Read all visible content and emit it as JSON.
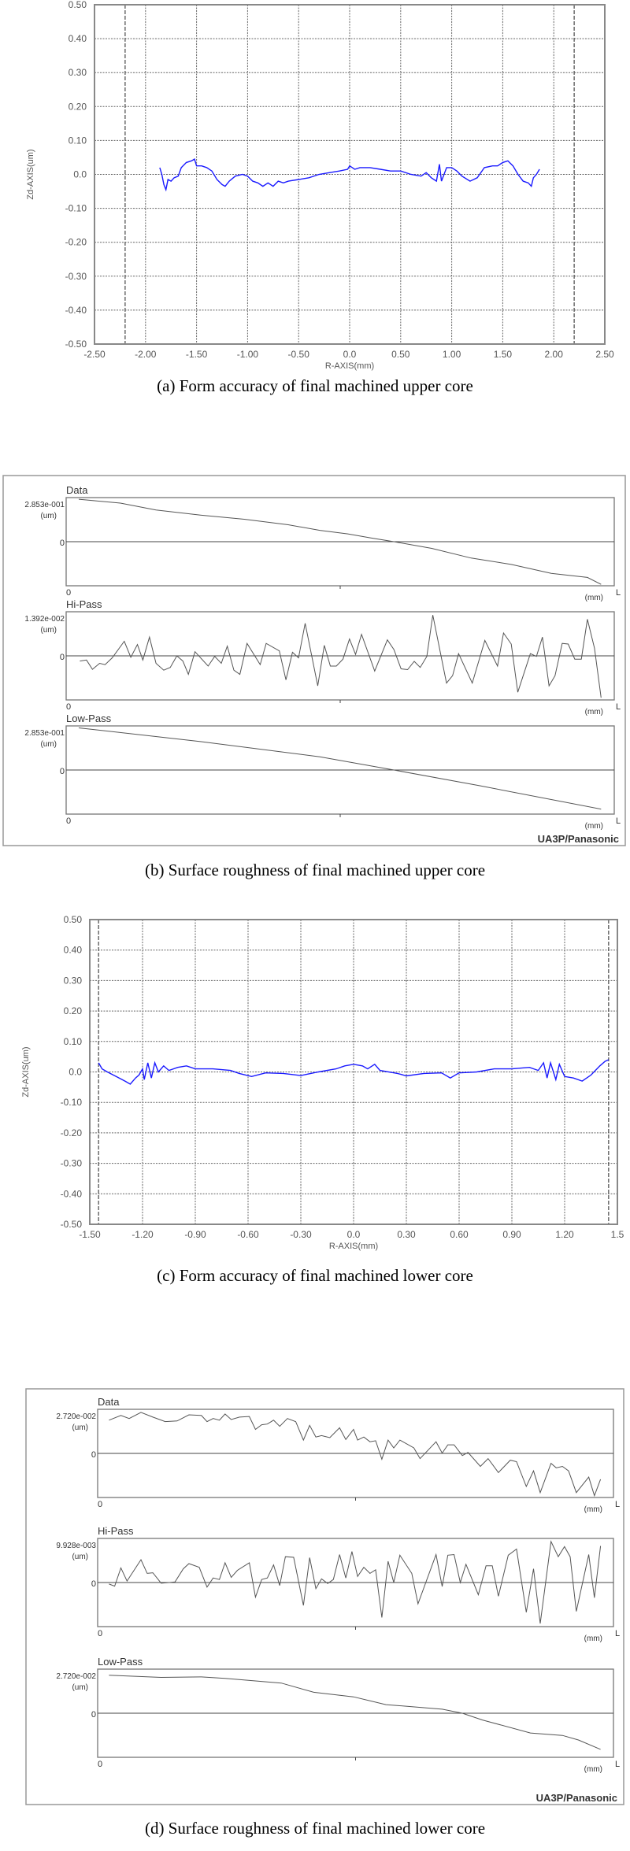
{
  "chart_data": [
    {
      "type": "line",
      "caption": "(a) Form accuracy of final machined upper core",
      "xlabel": "R-AXIS(mm)",
      "ylabel": "Zd-AXIS(um)",
      "xlim": [
        -2.5,
        2.5
      ],
      "ylim": [
        -0.5,
        0.5
      ],
      "xticks": [
        "-2.50",
        "-2.00",
        "-1.50",
        "-1.00",
        "-0.50",
        "0.0",
        "0.50",
        "1.00",
        "1.50",
        "2.00",
        "2.50"
      ],
      "yticks": [
        "0.50",
        "0.40",
        "0.30",
        "0.20",
        "0.10",
        "0.0",
        "-0.10",
        "-0.20",
        "-0.30",
        "-0.40",
        "-0.50"
      ],
      "grid": true,
      "line_color": "#1a1aff",
      "series": [
        {
          "x": [
            -1.86,
            -1.84,
            -1.82,
            -1.8,
            -1.78,
            -1.75,
            -1.72,
            -1.68,
            -1.65,
            -1.6,
            -1.55,
            -1.52,
            -1.5,
            -1.45,
            -1.4,
            -1.35,
            -1.3,
            -1.25,
            -1.22,
            -1.18,
            -1.12,
            -1.05,
            -1.0,
            -0.95,
            -0.9,
            -0.85,
            -0.8,
            -0.75,
            -0.7,
            -0.65,
            -0.6,
            -0.5,
            -0.4,
            -0.3,
            -0.2,
            -0.1,
            -0.02,
            0.0,
            0.05,
            0.1,
            0.2,
            0.3,
            0.4,
            0.5,
            0.6,
            0.7,
            0.75,
            0.8,
            0.85,
            0.88,
            0.9,
            0.95,
            1.0,
            1.05,
            1.1,
            1.18,
            1.25,
            1.32,
            1.4,
            1.45,
            1.5,
            1.55,
            1.6,
            1.65,
            1.7,
            1.75,
            1.78,
            1.8,
            1.83,
            1.86
          ],
          "y": [
            0.02,
            0.0,
            -0.03,
            -0.045,
            -0.015,
            -0.02,
            -0.01,
            -0.005,
            0.02,
            0.035,
            0.04,
            0.045,
            0.025,
            0.025,
            0.02,
            0.01,
            -0.015,
            -0.03,
            -0.035,
            -0.02,
            -0.005,
            0.0,
            -0.005,
            -0.02,
            -0.025,
            -0.035,
            -0.025,
            -0.035,
            -0.02,
            -0.025,
            -0.02,
            -0.015,
            -0.01,
            0.0,
            0.005,
            0.01,
            0.015,
            0.025,
            0.015,
            0.02,
            0.02,
            0.015,
            0.01,
            0.01,
            0.0,
            -0.005,
            0.005,
            -0.01,
            -0.02,
            0.03,
            -0.02,
            0.02,
            0.02,
            0.01,
            -0.005,
            -0.02,
            -0.01,
            0.02,
            0.025,
            0.025,
            0.035,
            0.04,
            0.025,
            0.0,
            -0.02,
            -0.025,
            -0.035,
            -0.01,
            0.0,
            0.015
          ]
        }
      ]
    },
    {
      "type": "line",
      "caption": "(b) Surface roughness of final machined upper core",
      "footer": "UA3P/Panasonic",
      "panels": [
        {
          "title": "Data",
          "max_label": "2.853e-001",
          "unit": "(um)",
          "zero_label": "0",
          "x_start": "0",
          "x_unit": "(mm)",
          "x_end": "L",
          "ylim": [
            -0.2853,
            0.2853
          ],
          "x": [
            0.023,
            0.099,
            0.164,
            0.245,
            0.325,
            0.405,
            0.463,
            0.514,
            0.557,
            0.598,
            0.667,
            0.739,
            0.812,
            0.885,
            0.951,
            0.976
          ],
          "y": [
            0.2745,
            0.2494,
            0.2046,
            0.1723,
            0.1453,
            0.1095,
            0.0736,
            0.0502,
            0.0233,
            0,
            -0.0431,
            -0.1059,
            -0.1471,
            -0.2046,
            -0.2315,
            -0.2763
          ]
        },
        {
          "title": "Hi-Pass",
          "max_label": "1.392e-002",
          "unit": "(um)",
          "zero_label": "0",
          "x_start": "0",
          "x_unit": "(mm)",
          "x_end": "L",
          "ylim": [
            -0.01392,
            0.01392
          ],
          "x": [
            0.025,
            0.037,
            0.048,
            0.061,
            0.071,
            0.084,
            0.106,
            0.118,
            0.13,
            0.14,
            0.152,
            0.164,
            0.178,
            0.19,
            0.202,
            0.213,
            0.223,
            0.235,
            0.259,
            0.271,
            0.283,
            0.294,
            0.306,
            0.317,
            0.33,
            0.354,
            0.365,
            0.389,
            0.401,
            0.413,
            0.424,
            0.436,
            0.459,
            0.471,
            0.482,
            0.493,
            0.505,
            0.517,
            0.528,
            0.539,
            0.563,
            0.586,
            0.598,
            0.611,
            0.623,
            0.635,
            0.646,
            0.658,
            0.669,
            0.694,
            0.705,
            0.716,
            0.741,
            0.764,
            0.787,
            0.798,
            0.812,
            0.824,
            0.847,
            0.858,
            0.869,
            0.881,
            0.892,
            0.905,
            0.916,
            0.928,
            0.94,
            0.951,
            0.964,
            0.976
          ],
          "y": [
            -0.00165,
            -0.00131,
            -0.00426,
            -0.00235,
            -0.00278,
            -0.00061,
            0.00461,
            -0.00044,
            0.00357,
            -0.00131,
            0.00592,
            -0.00235,
            -0.00452,
            -0.00365,
            0,
            -0.00165,
            -0.00583,
            0.00131,
            -0.00322,
            -0.00017,
            -0.00235,
            0.00305,
            -0.00452,
            -0.00583,
            0.00392,
            -0.00278,
            0.00392,
            0.00157,
            -0.00757,
            0.00113,
            -0.00061,
            0.01027,
            -0.00948,
            0.00331,
            -0.00322,
            -0.00322,
            -0.00104,
            0.00531,
            0.00044,
            0.00679,
            -0.00479,
            0.00505,
            0.002,
            -0.00409,
            -0.00435,
            -0.00174,
            -0.00365,
            -0.00017,
            0.01288,
            -0.00861,
            -0.00626,
            0.0007,
            -0.00861,
            0.00487,
            -0.00322,
            0.00722,
            0.00374,
            -0.01148,
            0.0007,
            -0.00017,
            0.00592,
            -0.00948,
            -0.00626,
            0.00392,
            0.00374,
            -0.00104,
            -0.00104,
            0.01157,
            0.00244,
            -0.01322
          ]
        },
        {
          "title": "Low-Pass",
          "max_label": "2.853e-001",
          "unit": "(um)",
          "zero_label": "0",
          "x_start": "0",
          "x_unit": "(mm)",
          "x_end": "L",
          "ylim": [
            -0.2853,
            0.2853
          ],
          "x": [
            0.023,
            0.245,
            0.463,
            0.598,
            0.754,
            0.976
          ],
          "y": [
            0.2728,
            0.1837,
            0.0856,
            0,
            -0.1016,
            -0.2532
          ]
        }
      ]
    },
    {
      "type": "line",
      "caption": "(c) Form accuracy of final machined lower core",
      "xlabel": "R-AXIS(mm)",
      "ylabel": "Zd-AXIS(um)",
      "xlim": [
        -1.5,
        1.5
      ],
      "ylim": [
        -0.5,
        0.5
      ],
      "xticks": [
        "-1.50",
        "-1.20",
        "-0.90",
        "-0.60",
        "-0.30",
        "0.0",
        "0.30",
        "0.60",
        "0.90",
        "1.20",
        "1.5"
      ],
      "yticks": [
        "0.50",
        "0.40",
        "0.30",
        "0.20",
        "0.10",
        "0.0",
        "-0.10",
        "-0.20",
        "-0.30",
        "-0.40",
        "-0.50"
      ],
      "grid": true,
      "line_color": "#1a1aff",
      "series": [
        {
          "x": [
            -1.45,
            -1.43,
            -1.4,
            -1.35,
            -1.3,
            -1.27,
            -1.24,
            -1.22,
            -1.2,
            -1.19,
            -1.17,
            -1.15,
            -1.13,
            -1.11,
            -1.08,
            -1.05,
            -1.0,
            -0.95,
            -0.9,
            -0.8,
            -0.7,
            -0.65,
            -0.58,
            -0.5,
            -0.4,
            -0.3,
            -0.2,
            -0.1,
            -0.05,
            0.0,
            0.05,
            0.08,
            0.12,
            0.15,
            0.25,
            0.3,
            0.4,
            0.5,
            0.55,
            0.6,
            0.7,
            0.8,
            0.9,
            1.0,
            1.05,
            1.08,
            1.1,
            1.12,
            1.15,
            1.17,
            1.2,
            1.25,
            1.3,
            1.35,
            1.4,
            1.43,
            1.45
          ],
          "y": [
            0.03,
            0.01,
            0.0,
            -0.015,
            -0.03,
            -0.04,
            -0.02,
            -0.01,
            0.01,
            -0.025,
            0.03,
            -0.02,
            0.03,
            0.0,
            0.02,
            0.005,
            0.015,
            0.02,
            0.01,
            0.01,
            0.005,
            -0.005,
            -0.015,
            -0.003,
            -0.005,
            -0.012,
            0.0,
            0.01,
            0.02,
            0.025,
            0.02,
            0.01,
            0.025,
            0.005,
            -0.005,
            -0.013,
            -0.005,
            -0.003,
            -0.02,
            -0.003,
            0.0,
            0.01,
            0.01,
            0.015,
            0.005,
            0.03,
            -0.02,
            0.03,
            -0.025,
            0.025,
            -0.015,
            -0.02,
            -0.03,
            -0.01,
            0.02,
            0.035,
            0.04
          ]
        }
      ]
    },
    {
      "type": "line",
      "caption": "(d) Surface roughness of final machined lower core",
      "footer": "UA3P/Panasonic",
      "panels": [
        {
          "title": "Data",
          "max_label": "2.720e-002",
          "unit": "(um)",
          "zero_label": "0",
          "x_start": "0",
          "x_unit": "(mm)",
          "x_end": "L",
          "ylim": [
            -0.0272,
            0.0272
          ],
          "x": [
            0.022,
            0.045,
            0.061,
            0.084,
            0.107,
            0.131,
            0.154,
            0.177,
            0.201,
            0.212,
            0.224,
            0.236,
            0.247,
            0.259,
            0.275,
            0.294,
            0.306,
            0.318,
            0.329,
            0.341,
            0.353,
            0.368,
            0.384,
            0.399,
            0.411,
            0.423,
            0.434,
            0.45,
            0.469,
            0.481,
            0.496,
            0.504,
            0.516,
            0.528,
            0.539,
            0.551,
            0.563,
            0.574,
            0.586,
            0.613,
            0.625,
            0.656,
            0.668,
            0.679,
            0.691,
            0.707,
            0.718,
            0.742,
            0.757,
            0.777,
            0.8,
            0.812,
            0.831,
            0.845,
            0.858,
            0.879,
            0.889,
            0.901,
            0.913,
            0.928,
            0.952,
            0.963,
            0.975
          ],
          "y": [
            0.0205,
            0.0234,
            0.0215,
            0.0253,
            0.0224,
            0.0196,
            0.02,
            0.0238,
            0.0234,
            0.0196,
            0.0215,
            0.0205,
            0.0243,
            0.0209,
            0.0224,
            0.0228,
            0.0148,
            0.0177,
            0.0181,
            0.0205,
            0.0167,
            0.0215,
            0.0196,
            0.0082,
            0.0173,
            0.0101,
            0.011,
            0.0097,
            0.0158,
            0.0086,
            0.0148,
            0.0082,
            0.0101,
            0.0072,
            0.0078,
            -0.0036,
            0.0082,
            0.0034,
            0.0082,
            0.0034,
            -0.0032,
            0.0072,
            0.0002,
            0.0053,
            0.0053,
            -0.0013,
            0.0006,
            -0.008,
            -0.0032,
            -0.0118,
            -0.0042,
            -0.0051,
            -0.0204,
            -0.0108,
            -0.0242,
            -0.0061,
            -0.0089,
            -0.008,
            -0.0108,
            -0.0242,
            -0.0146,
            -0.0261,
            -0.016
          ]
        },
        {
          "title": "Hi-Pass",
          "max_label": "9.928e-003",
          "unit": "(um)",
          "zero_label": "0",
          "x_start": "0",
          "x_unit": "(mm)",
          "x_end": "L",
          "ylim": [
            -0.009928,
            0.009928
          ],
          "x": [
            0.022,
            0.033,
            0.045,
            0.057,
            0.084,
            0.096,
            0.107,
            0.123,
            0.139,
            0.15,
            0.166,
            0.177,
            0.197,
            0.212,
            0.224,
            0.236,
            0.247,
            0.259,
            0.271,
            0.294,
            0.306,
            0.318,
            0.329,
            0.341,
            0.353,
            0.364,
            0.38,
            0.399,
            0.411,
            0.423,
            0.434,
            0.446,
            0.457,
            0.469,
            0.481,
            0.493,
            0.504,
            0.516,
            0.528,
            0.539,
            0.551,
            0.563,
            0.574,
            0.586,
            0.609,
            0.621,
            0.656,
            0.668,
            0.679,
            0.691,
            0.703,
            0.714,
            0.738,
            0.753,
            0.765,
            0.777,
            0.796,
            0.812,
            0.831,
            0.845,
            0.858,
            0.879,
            0.893,
            0.905,
            0.916,
            0.928,
            0.952,
            0.963,
            0.975
          ],
          "y": [
            -0.00034,
            -0.00082,
            0.00329,
            0.00034,
            0.00514,
            0.00205,
            0.00219,
            -0.00014,
            0,
            0.00014,
            0.00308,
            0.00425,
            0.00342,
            -0.00103,
            0.00103,
            0.00068,
            0.00445,
            0.00116,
            0.00274,
            0.00445,
            -0.00329,
            0.00068,
            0.00103,
            0.00397,
            -0.00068,
            0.00582,
            0.00568,
            -0.00514,
            0.00561,
            -0.00137,
            0.00082,
            -0.00021,
            0.00068,
            0.0063,
            0.00103,
            0.00698,
            0.00137,
            0.00342,
            0.00205,
            0.00288,
            -0.00787,
            0.00479,
            0,
            0.00616,
            0.00205,
            -0.00479,
            0.0063,
            -0.00089,
            0.00616,
            0.0063,
            0,
            0.00411,
            -0.00274,
            0.00377,
            0.00377,
            -0.00308,
            0.00616,
            0.00753,
            -0.00671,
            0.00308,
            -0.00924,
            0.00924,
            0.00582,
            0.00808,
            0.00582,
            -0.0065,
            0.0063,
            -0.00342,
            0.00822
          ]
        },
        {
          "title": "Low-Pass",
          "max_label": "2.720e-002",
          "unit": "(um)",
          "zero_label": "0",
          "x_start": "0",
          "x_unit": "(mm)",
          "x_end": "L",
          "ylim": [
            -0.0272,
            0.0272
          ],
          "x": [
            0.022,
            0.123,
            0.201,
            0.247,
            0.356,
            0.419,
            0.496,
            0.559,
            0.668,
            0.707,
            0.746,
            0.839,
            0.901,
            0.932,
            0.975
          ],
          "y": [
            0.0234,
            0.0221,
            0.0224,
            0.0215,
            0.0186,
            0.0129,
            0.0101,
            0.0053,
            0.0025,
            0,
            -0.0042,
            -0.0122,
            -0.0137,
            -0.0165,
            -0.0223
          ]
        }
      ]
    }
  ]
}
